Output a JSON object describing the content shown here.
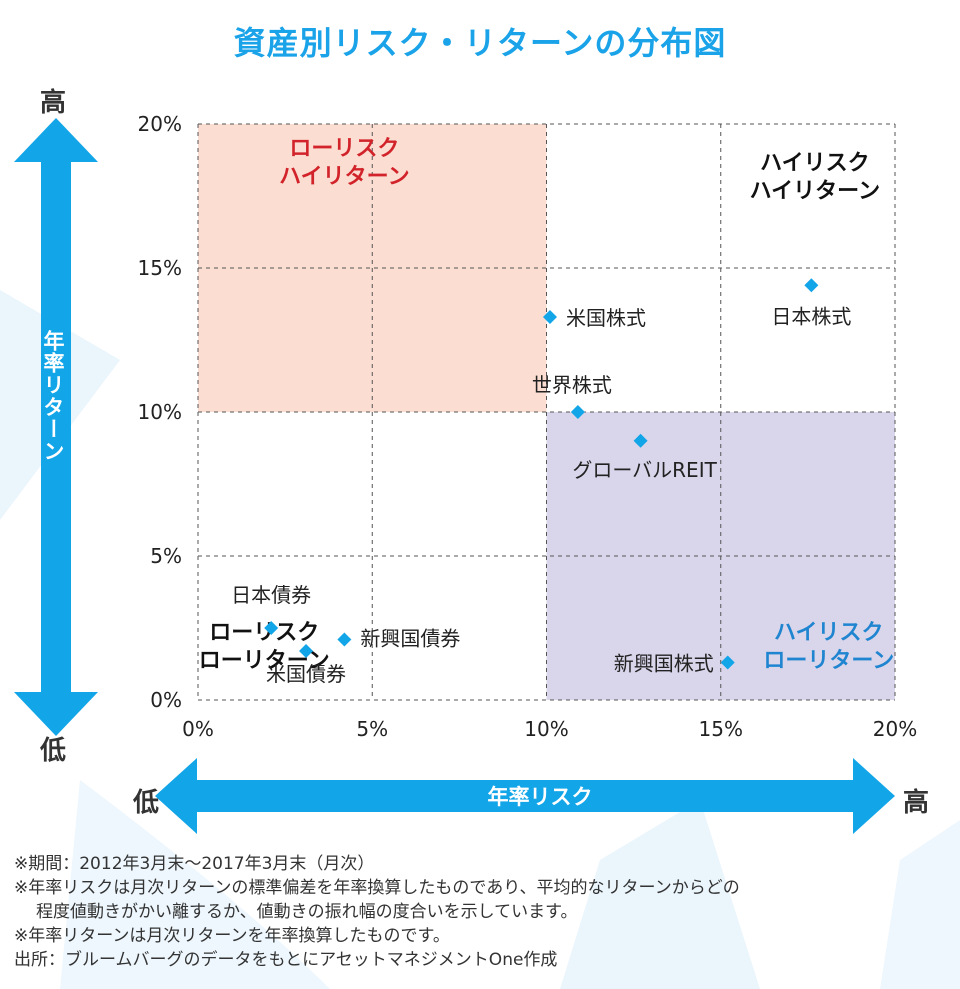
{
  "title": "資産別リスク・リターンの分布図",
  "y_axis": {
    "name": "年率リターン",
    "high": "高",
    "low": "低"
  },
  "x_axis": {
    "name": "年率リスク",
    "high": "高",
    "low": "低"
  },
  "colors": {
    "accent": "#1aa3e8",
    "arrow": "#12a5e8",
    "low_risk_high_return_fill": "#fbddd1",
    "high_risk_low_return_fill": "#d9d5ea",
    "point": "#12a5e8",
    "red_label": "#d2232a",
    "blue_label": "#1f85d0"
  },
  "chart_data": {
    "type": "scatter",
    "title": "資産別リスク・リターンの分布図",
    "xlabel": "年率リスク",
    "ylabel": "年率リターン",
    "xlim": [
      0,
      20
    ],
    "ylim": [
      0,
      20
    ],
    "unit": "%",
    "xticks": [
      "0%",
      "5%",
      "10%",
      "15%",
      "20%"
    ],
    "yticks": [
      "0%",
      "5%",
      "10%",
      "15%",
      "20%"
    ],
    "grid": "dashed",
    "points": [
      {
        "label": "日本債券",
        "x": 2.1,
        "y": 2.5
      },
      {
        "label": "新興国債券",
        "x": 4.2,
        "y": 2.1
      },
      {
        "label": "米国債券",
        "x": 3.1,
        "y": 1.7
      },
      {
        "label": "米国株式",
        "x": 10.1,
        "y": 13.3
      },
      {
        "label": "世界株式",
        "x": 10.9,
        "y": 10.0
      },
      {
        "label": "グローバルREIT",
        "x": 12.7,
        "y": 9.0
      },
      {
        "label": "日本株式",
        "x": 17.6,
        "y": 14.4
      },
      {
        "label": "新興国株式",
        "x": 15.2,
        "y": 1.3
      }
    ],
    "regions": [
      {
        "name": "ローリスク ハイリターン",
        "lines": [
          "ローリスク",
          "ハイリターン"
        ],
        "x": [
          0,
          10
        ],
        "y": [
          10,
          20
        ],
        "shaded": true
      },
      {
        "name": "ハイリスク ハイリターン",
        "lines": [
          "ハイリスク",
          "ハイリターン"
        ],
        "x": [
          15,
          20
        ],
        "y": [
          15,
          20
        ],
        "shaded": false
      },
      {
        "name": "ローリスク ローリターン",
        "lines": [
          "ローリスク",
          "ローリターン"
        ],
        "x": [
          0,
          5
        ],
        "y": [
          0,
          5
        ],
        "shaded": false
      },
      {
        "name": "ハイリスク ローリターン",
        "lines": [
          "ハイリスク",
          "ローリターン"
        ],
        "x": [
          10,
          20
        ],
        "y": [
          0,
          10
        ],
        "shaded": true
      }
    ]
  },
  "notes": [
    "※期間：2012年3月末～2017年3月末（月次）",
    "※年率リスクは月次リターンの標準偏差を年率換算したものであり、平均的なリターンからどの",
    "程度値動きがかい離するか、値動きの振れ幅の度合いを示しています。",
    "※年率リターンは月次リターンを年率換算したものです。",
    "出所：ブルームバーグのデータをもとにアセットマネジメントOne作成"
  ]
}
